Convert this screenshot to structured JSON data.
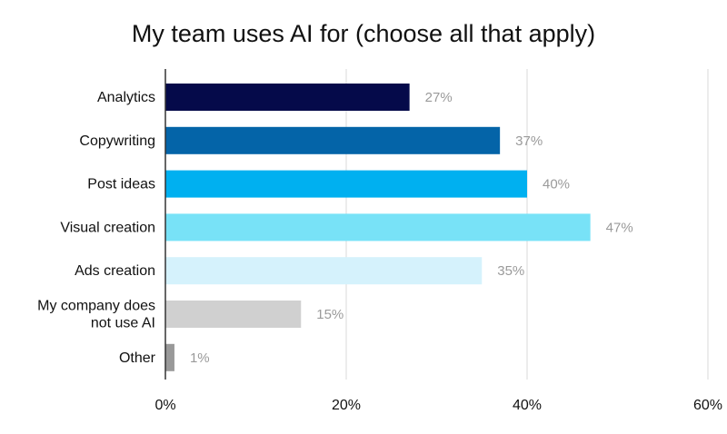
{
  "chart_data": {
    "type": "bar",
    "orientation": "horizontal",
    "title": "My team uses AI for (choose all that apply)",
    "xlabel": "",
    "ylabel": "",
    "categories": [
      [
        "Analytics"
      ],
      [
        "Copywriting"
      ],
      [
        "Post ideas"
      ],
      [
        "Visual creation"
      ],
      [
        "Ads creation"
      ],
      [
        "My company does",
        "not use AI"
      ],
      [
        "Other"
      ]
    ],
    "values": [
      27,
      37,
      40,
      47,
      35,
      15,
      1
    ],
    "data_labels": [
      "27%",
      "37%",
      "40%",
      "47%",
      "35%",
      "15%",
      "1%"
    ],
    "colors": [
      "#050a4a",
      "#0464a8",
      "#00b0f0",
      "#78e2f7",
      "#d5f2fc",
      "#d0d0d0",
      "#999999"
    ],
    "xlim": [
      0,
      60
    ],
    "x_ticks": [
      0,
      20,
      40,
      60
    ],
    "x_tick_labels": [
      "0%",
      "20%",
      "40%",
      "60%"
    ],
    "grid": true,
    "grid_color": "#d9d9d9",
    "axis_color": "#333333"
  }
}
